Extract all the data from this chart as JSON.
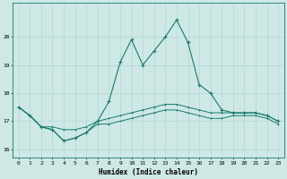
{
  "xlabel": "Humidex (Indice chaleur)",
  "ylabel": "",
  "xlim": [
    -0.5,
    23.5
  ],
  "ylim": [
    15.7,
    21.2
  ],
  "yticks": [
    16,
    17,
    18,
    19,
    20
  ],
  "xticks": [
    0,
    1,
    2,
    3,
    4,
    5,
    6,
    7,
    8,
    9,
    10,
    11,
    12,
    13,
    14,
    15,
    16,
    17,
    18,
    19,
    20,
    21,
    22,
    23
  ],
  "bg_color": "#cde8e5",
  "line_color": "#1a7a6e",
  "grid_color": "#b0d4d0",
  "line_max": [
    17.5,
    17.2,
    16.8,
    16.7,
    16.3,
    16.4,
    16.6,
    17.0,
    17.7,
    19.1,
    19.9,
    19.0,
    19.5,
    20.0,
    20.6,
    19.8,
    18.3,
    18.0,
    17.4,
    17.3,
    17.3,
    17.3,
    17.2,
    17.0
  ],
  "line_mean": [
    17.5,
    17.2,
    16.8,
    16.8,
    16.7,
    16.7,
    16.8,
    17.0,
    17.1,
    17.2,
    17.3,
    17.4,
    17.5,
    17.6,
    17.6,
    17.5,
    17.4,
    17.3,
    17.3,
    17.3,
    17.3,
    17.3,
    17.2,
    17.0
  ],
  "line_min": [
    17.5,
    17.2,
    16.8,
    16.7,
    16.3,
    16.4,
    16.6,
    16.9,
    16.9,
    17.0,
    17.1,
    17.2,
    17.3,
    17.4,
    17.4,
    17.3,
    17.2,
    17.1,
    17.1,
    17.2,
    17.2,
    17.2,
    17.1,
    16.9
  ],
  "xlabel_fontsize": 5.5,
  "tick_fontsize": 4.5,
  "linewidth_main": 0.8,
  "linewidth_sub": 0.7,
  "marker_size": 2.5
}
